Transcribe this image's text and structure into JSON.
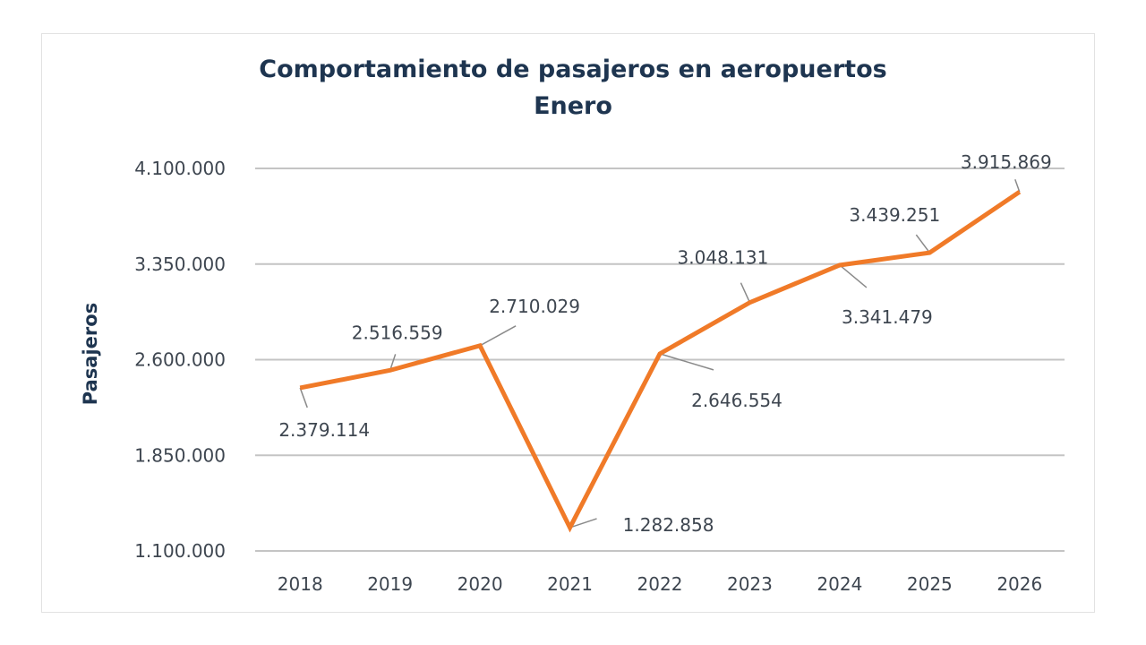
{
  "chart_data": {
    "type": "line",
    "title": "Comportamiento de pasajeros en aeropuertos",
    "subtitle": "Enero",
    "xlabel": "",
    "ylabel": "Pasajeros",
    "categories": [
      "2018",
      "2019",
      "2020",
      "2021",
      "2022",
      "2023",
      "2024",
      "2025",
      "2026"
    ],
    "series": [
      {
        "name": "Pasajeros",
        "values": [
          2379114,
          2516559,
          2710029,
          1282858,
          2646554,
          3048131,
          3341479,
          3439251,
          3915869
        ],
        "labels": [
          "2.379.114",
          "2.516.559",
          "2.710.029",
          "1.282.858",
          "2.646.554",
          "3.048.131",
          "3.341.479",
          "3.439.251",
          "3.915.869"
        ],
        "color": "#f07a28"
      }
    ],
    "ylim": [
      1100000,
      4100000
    ],
    "yticks": [
      1100000,
      1850000,
      2600000,
      3350000,
      4100000
    ],
    "ytick_labels": [
      "1.100.000",
      "1.850.000",
      "2.600.000",
      "3.350.000",
      "4.100.000"
    ],
    "grid": true,
    "legend": "none"
  }
}
